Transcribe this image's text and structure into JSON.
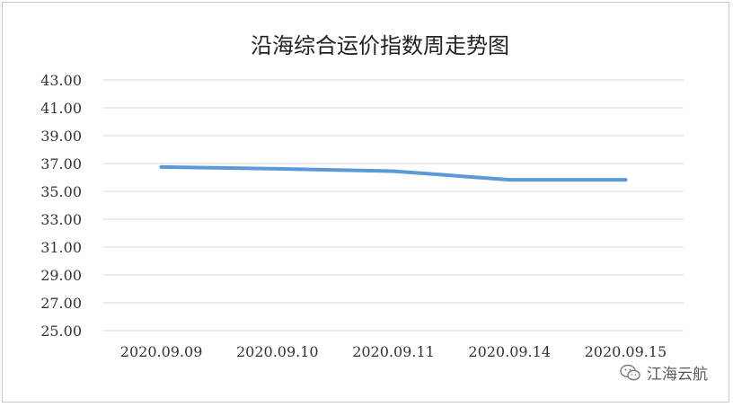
{
  "chart_data": {
    "type": "line",
    "title": "沿海综合运价指数周走势图",
    "categories": [
      "2020.09.09",
      "2020.09.10",
      "2020.09.11",
      "2020.09.14",
      "2020.09.15"
    ],
    "series": [
      {
        "values": [
          36.75,
          36.62,
          36.45,
          35.83,
          35.83
        ],
        "color": "#5b9bd5"
      }
    ],
    "ylim": [
      25.0,
      43.0
    ],
    "yticks": [
      "25.00",
      "27.00",
      "29.00",
      "31.00",
      "33.00",
      "35.00",
      "37.00",
      "39.00",
      "41.00",
      "43.00"
    ],
    "grid": true,
    "legend": "none"
  },
  "watermark": {
    "text": "江海云航",
    "icon": "wechat-icon"
  }
}
